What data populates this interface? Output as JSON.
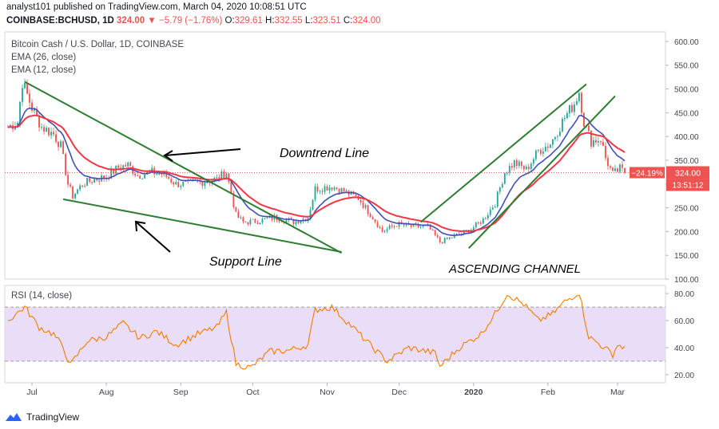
{
  "header": {
    "line1": "analyst101 published on TradingView.com, March 04, 2020 10:08:51 UTC",
    "symbol": "COINBASE:BCHUSD, 1D",
    "last": "324.00",
    "arrow": "▼",
    "change": "−5.79 (−1.76%)",
    "o_label": "O:",
    "o": "329.61",
    "h_label": "H:",
    "h": "332.55",
    "l_label": "L:",
    "l": "323.51",
    "c_label": "C:",
    "c": "324.00"
  },
  "legend": {
    "title": "Bitcoin Cash / U.S. Dollar, 1D, COINBASE",
    "ema26": "EMA (26, close)",
    "ema12": "EMA (12, close)",
    "rsi": "RSI (14, close)"
  },
  "footer": {
    "brand": "TradingView"
  },
  "colors": {
    "up": "#26a69a",
    "down": "#ef5350",
    "ema12": "#3f51b5",
    "ema26": "#f23645",
    "rsi": "#f57c00",
    "rsi_band": "#e9ddf7",
    "trendline": "#2e7d32",
    "price_line": "#ef5350"
  },
  "chart_data": [
    {
      "type": "candlestick",
      "title": "Bitcoin Cash / U.S. Dollar, 1D, COINBASE",
      "ylim": [
        100,
        620
      ],
      "y_ticks": [
        "100.00",
        "150.00",
        "200.00",
        "250.00",
        "300.00",
        "350.00",
        "400.00",
        "450.00",
        "500.00",
        "550.00",
        "600.00"
      ],
      "x_ticks": [
        "Jul",
        "Aug",
        "Sep",
        "Oct",
        "Nov",
        "Dec",
        "2020",
        "Feb",
        "Mar"
      ],
      "price_label": "324.00",
      "pct_label": "−24.19%",
      "countdown": "13:51:12",
      "x_range": [
        "2019-06-21",
        "2020-03-04"
      ],
      "path": [
        [
          "2019-06-21",
          420
        ],
        [
          "2019-06-25",
          430
        ],
        [
          "2019-06-27",
          515
        ],
        [
          "2019-07-01",
          460
        ],
        [
          "2019-07-05",
          420
        ],
        [
          "2019-07-10",
          405
        ],
        [
          "2019-07-13",
          380
        ],
        [
          "2019-07-16",
          300
        ],
        [
          "2019-07-18",
          275
        ],
        [
          "2019-07-22",
          300
        ],
        [
          "2019-07-27",
          310
        ],
        [
          "2019-08-01",
          315
        ],
        [
          "2019-08-06",
          335
        ],
        [
          "2019-08-10",
          340
        ],
        [
          "2019-08-14",
          318
        ],
        [
          "2019-08-20",
          325
        ],
        [
          "2019-08-25",
          320
        ],
        [
          "2019-08-30",
          300
        ],
        [
          "2019-09-04",
          300
        ],
        [
          "2019-09-10",
          305
        ],
        [
          "2019-09-16",
          310
        ],
        [
          "2019-09-20",
          325
        ],
        [
          "2019-09-24",
          235
        ],
        [
          "2019-09-27",
          220
        ],
        [
          "2019-10-03",
          222
        ],
        [
          "2019-10-10",
          230
        ],
        [
          "2019-10-18",
          220
        ],
        [
          "2019-10-24",
          230
        ],
        [
          "2019-10-27",
          290
        ],
        [
          "2019-11-03",
          295
        ],
        [
          "2019-11-08",
          285
        ],
        [
          "2019-11-14",
          270
        ],
        [
          "2019-11-20",
          230
        ],
        [
          "2019-11-24",
          200
        ],
        [
          "2019-11-30",
          215
        ],
        [
          "2019-12-07",
          210
        ],
        [
          "2019-12-13",
          210
        ],
        [
          "2019-12-18",
          178
        ],
        [
          "2019-12-24",
          190
        ],
        [
          "2019-12-31",
          205
        ],
        [
          "2020-01-05",
          225
        ],
        [
          "2020-01-10",
          260
        ],
        [
          "2020-01-14",
          325
        ],
        [
          "2020-01-18",
          345
        ],
        [
          "2020-01-23",
          330
        ],
        [
          "2020-01-28",
          370
        ],
        [
          "2020-02-02",
          385
        ],
        [
          "2020-02-08",
          440
        ],
        [
          "2020-02-12",
          470
        ],
        [
          "2020-02-14",
          495
        ],
        [
          "2020-02-16",
          430
        ],
        [
          "2020-02-19",
          390
        ],
        [
          "2020-02-23",
          395
        ],
        [
          "2020-02-25",
          355
        ],
        [
          "2020-02-28",
          320
        ],
        [
          "2020-03-02",
          332
        ],
        [
          "2020-03-04",
          324
        ]
      ]
    },
    {
      "type": "line",
      "title": "RSI (14, close)",
      "ylim": [
        14,
        86
      ],
      "y_ticks": [
        "20.00",
        "40.00",
        "60.00",
        "80.00"
      ],
      "band": [
        30,
        70
      ],
      "series": [
        {
          "name": "RSI (14, close)",
          "points": [
            [
              "2019-06-21",
              60
            ],
            [
              "2019-06-28",
              70
            ],
            [
              "2019-07-04",
              55
            ],
            [
              "2019-07-10",
              50
            ],
            [
              "2019-07-14",
              40
            ],
            [
              "2019-07-17",
              27
            ],
            [
              "2019-07-24",
              45
            ],
            [
              "2019-08-01",
              48
            ],
            [
              "2019-08-08",
              58
            ],
            [
              "2019-08-15",
              47
            ],
            [
              "2019-08-22",
              52
            ],
            [
              "2019-08-30",
              42
            ],
            [
              "2019-09-08",
              50
            ],
            [
              "2019-09-16",
              55
            ],
            [
              "2019-09-20",
              66
            ],
            [
              "2019-09-24",
              28
            ],
            [
              "2019-09-30",
              25
            ],
            [
              "2019-10-08",
              37
            ],
            [
              "2019-10-16",
              38
            ],
            [
              "2019-10-24",
              42
            ],
            [
              "2019-10-27",
              68
            ],
            [
              "2019-11-03",
              70
            ],
            [
              "2019-11-10",
              58
            ],
            [
              "2019-11-20",
              40
            ],
            [
              "2019-11-26",
              30
            ],
            [
              "2019-12-05",
              40
            ],
            [
              "2019-12-16",
              36
            ],
            [
              "2019-12-18",
              26
            ],
            [
              "2019-12-26",
              40
            ],
            [
              "2020-01-04",
              50
            ],
            [
              "2020-01-10",
              65
            ],
            [
              "2020-01-15",
              80
            ],
            [
              "2020-01-22",
              72
            ],
            [
              "2020-01-28",
              60
            ],
            [
              "2020-02-03",
              65
            ],
            [
              "2020-02-08",
              74
            ],
            [
              "2020-02-14",
              81
            ],
            [
              "2020-02-18",
              48
            ],
            [
              "2020-02-23",
              42
            ],
            [
              "2020-02-28",
              35
            ],
            [
              "2020-03-01",
              42
            ],
            [
              "2020-03-04",
              40
            ]
          ]
        }
      ]
    }
  ],
  "annotations": {
    "downtrend": "Downtrend Line",
    "support": "Support Line",
    "channel": "ASCENDING CHANNEL"
  }
}
